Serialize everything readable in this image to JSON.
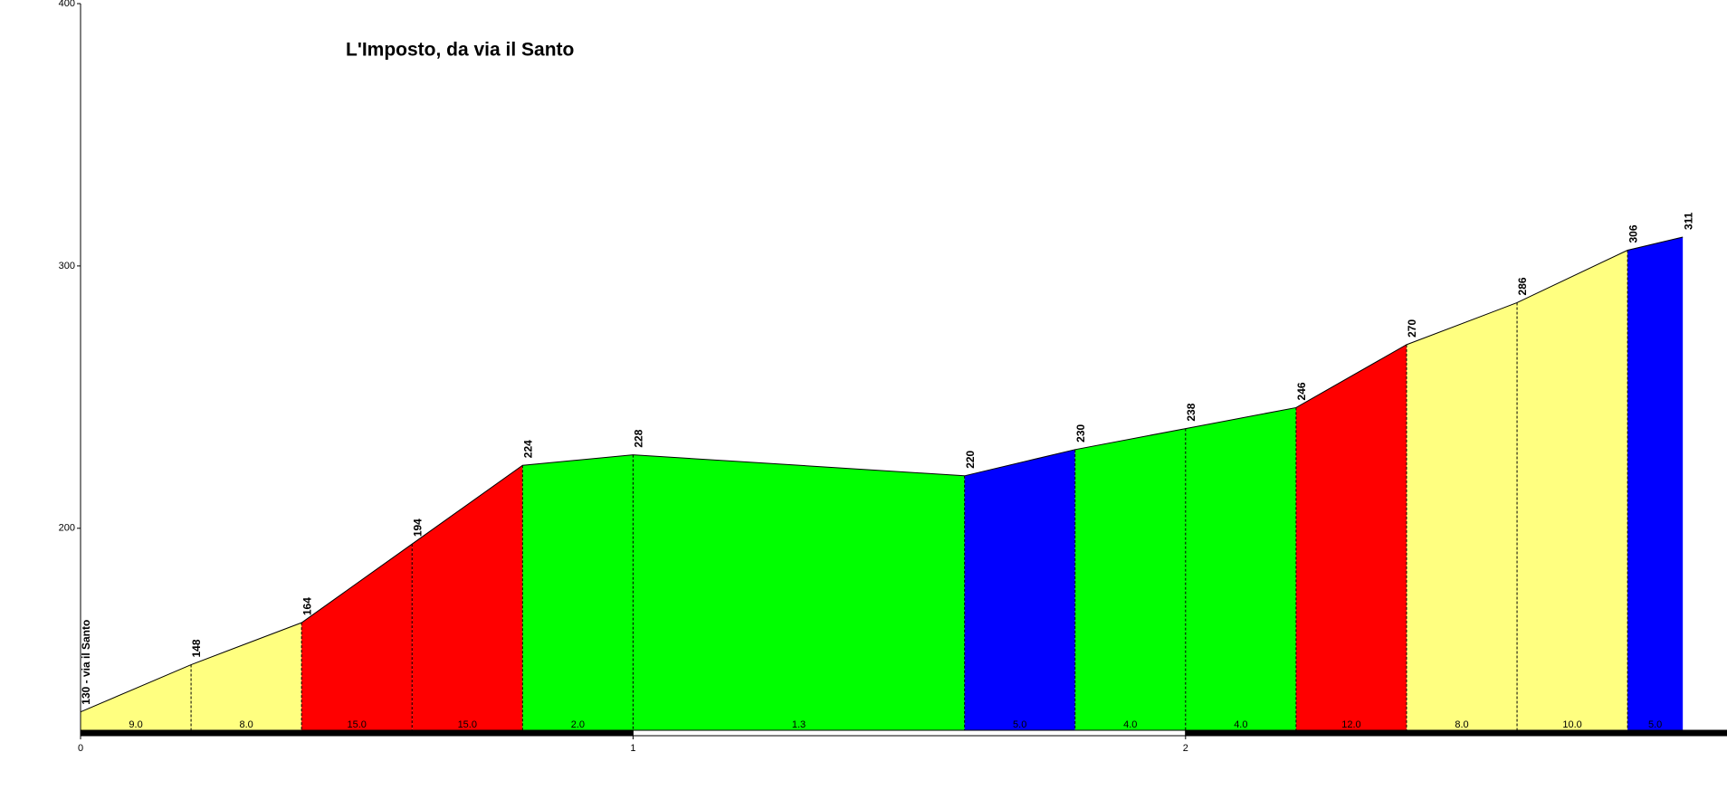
{
  "chart_data": {
    "type": "elevation-profile",
    "title": "L'Imposto, da via il Santo",
    "x": [
      0,
      0.2,
      0.4,
      0.6,
      0.8,
      1.0,
      1.6,
      1.8,
      2.0,
      2.2,
      2.4,
      2.6,
      2.8,
      2.9
    ],
    "values": [
      130,
      148,
      164,
      194,
      224,
      228,
      220,
      230,
      238,
      246,
      270,
      286,
      306,
      311
    ],
    "value_labels": [
      "130 - via il Santo",
      "148",
      "164",
      "194",
      "224",
      "228",
      "220",
      "230",
      "238",
      "246",
      "270",
      "286",
      "306",
      "311"
    ],
    "segment_labels": [
      "9.0",
      "8.0",
      "15.0",
      "15.0",
      "2.0",
      "1.3",
      "5.0",
      "4.0",
      "4.0",
      "12.0",
      "8.0",
      "10.0",
      "5.0"
    ],
    "segment_colors": [
      "#ffff80",
      "#ffff80",
      "#ff0000",
      "#ff0000",
      "#00ff00",
      "#00ff00",
      "#0000ff",
      "#00ff00",
      "#00ff00",
      "#ff0000",
      "#ffff80",
      "#ffff80",
      "#0000ff"
    ],
    "xlim": [
      0,
      2.98
    ],
    "ylim": [
      123,
      400
    ],
    "xticks": [
      0,
      1,
      2
    ],
    "yticks": [
      200,
      300,
      400
    ]
  }
}
